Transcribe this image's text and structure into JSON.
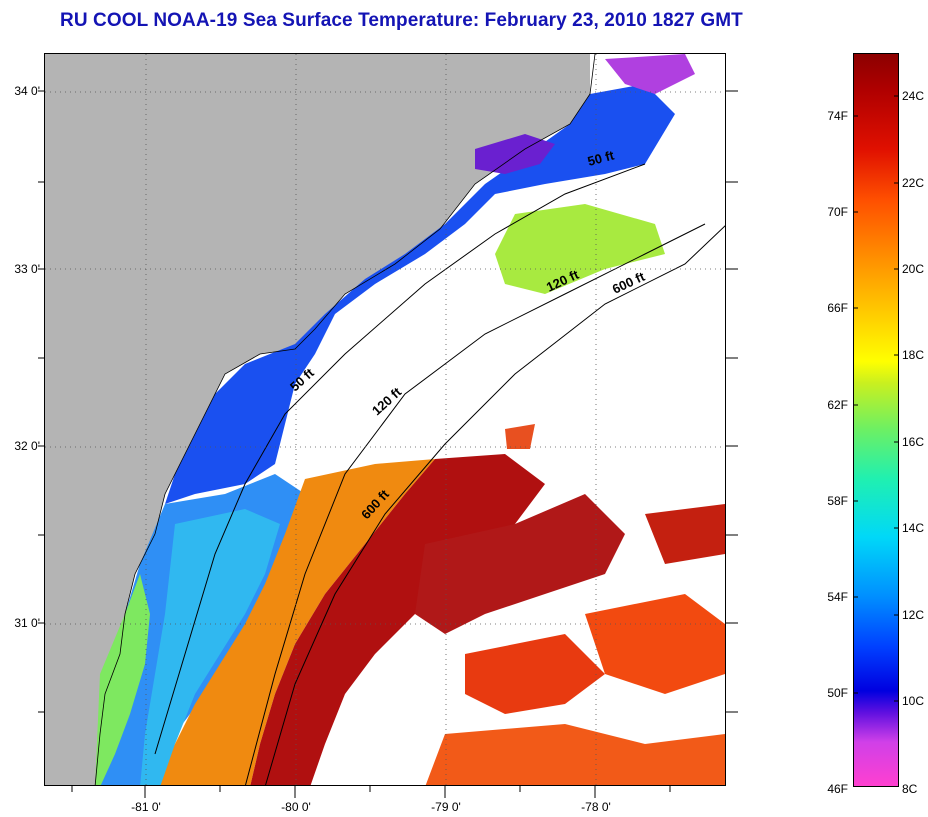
{
  "title": "RU COOL  NOAA-19  Sea Surface Temperature:  February 23, 2010 1827 GMT",
  "map": {
    "latitude_labels": [
      "34 0'",
      "33 0'",
      "32 0'",
      "31 0'"
    ],
    "longitude_labels": [
      "-81 0'",
      "-80 0'",
      "-79 0'",
      "-78 0'"
    ],
    "isobath_labels": [
      "50 ft",
      "120 ft",
      "600 ft",
      "50 ft",
      "120 ft",
      "600 ft"
    ],
    "colors": {
      "land": "#b4b4b4",
      "no_data": "#ffffff",
      "grid": "#555555"
    }
  },
  "colorbar": {
    "fahrenheit_labels": [
      "74F",
      "70F",
      "66F",
      "62F",
      "58F",
      "54F",
      "50F",
      "46F"
    ],
    "celsius_labels": [
      "24C",
      "22C",
      "20C",
      "18C",
      "16C",
      "14C",
      "12C",
      "10C",
      "8C"
    ],
    "range_celsius": [
      8,
      25
    ],
    "colors": [
      "#ff40d0",
      "#6010e0",
      "#0000e0",
      "#0090ff",
      "#00d8f8",
      "#70f060",
      "#ffff00",
      "#ff9000",
      "#e01000",
      "#8c0000"
    ]
  }
}
